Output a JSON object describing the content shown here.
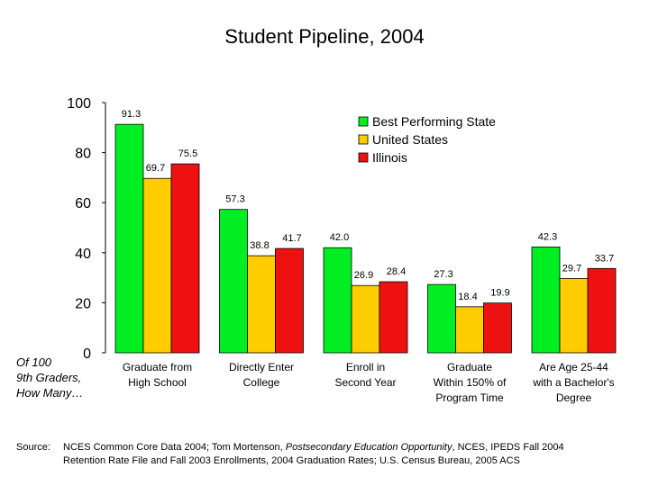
{
  "title": "Student Pipeline, 2004",
  "side_note": [
    "Of 100",
    "9th Graders,",
    "How Many…"
  ],
  "source": {
    "label": "Source:",
    "part1": "NCES Common Core Data 2004; Tom Mortenson, ",
    "italic": "Postsecondary Education Opportunity",
    "part2": ", NCES, IPEDS Fall 2004",
    "line2": "Retention Rate File and Fall 2003 Enrollments, 2004 Graduation Rates; U.S. Census Bureau, 2005 ACS"
  },
  "chart_data": {
    "type": "bar",
    "categories": [
      [
        "Graduate from",
        "High School"
      ],
      [
        "Directly Enter",
        "College"
      ],
      [
        "Enroll in",
        "Second Year"
      ],
      [
        "Graduate",
        "Within 150% of",
        "Program Time"
      ],
      [
        "Are Age 25-44",
        "with a Bachelor's",
        "Degree"
      ]
    ],
    "series": [
      {
        "name": "Best Performing State",
        "color": "#00ee22",
        "values": [
          91.3,
          57.3,
          42.0,
          27.3,
          42.3
        ],
        "labels": [
          "91.3",
          "57.3",
          "42.0",
          "27.3",
          "42.3"
        ]
      },
      {
        "name": "United States",
        "color": "#ffcc00",
        "values": [
          69.7,
          38.8,
          26.9,
          18.4,
          29.7
        ],
        "labels": [
          "69.7",
          "38.8",
          "26.9",
          "18.4",
          "29.7"
        ]
      },
      {
        "name": "Illinois",
        "color": "#ee1111",
        "values": [
          75.5,
          41.7,
          28.4,
          19.9,
          33.7
        ],
        "labels": [
          "75.5",
          "41.7",
          "28.4",
          "19.9",
          "33.7"
        ]
      }
    ],
    "ylim": [
      0,
      100
    ],
    "yticks": [
      0,
      20,
      40,
      60,
      80,
      100
    ],
    "grid": false,
    "legend": "top-right"
  }
}
